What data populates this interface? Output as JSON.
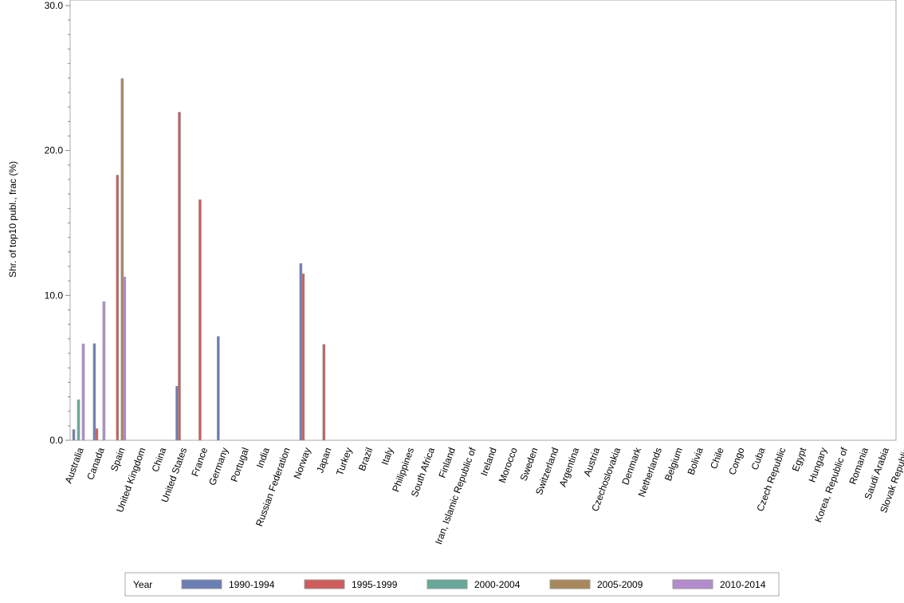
{
  "chart_data": {
    "type": "bar",
    "ylabel": "Shr. of top10 publ., frac (%)",
    "ylim": [
      0,
      30
    ],
    "yticks": [
      "0.0",
      "10.0",
      "20.0",
      "30.0"
    ],
    "grid": false,
    "legend_title": "Year",
    "legend_placement": "bottom",
    "categories": [
      "Australia",
      "Canada",
      "Spain",
      "United Kingdom",
      "China",
      "United States",
      "France",
      "Germany",
      "Portugal",
      "India",
      "Russian Federation",
      "Norway",
      "Japan",
      "Turkey",
      "Brazil",
      "Italy",
      "Philippines",
      "South Africa",
      "Finland",
      "Iran, Islamic Republic of",
      "Ireland",
      "Morocco",
      "Sweden",
      "Switzerland",
      "Argentina",
      "Austria",
      "Czechoslovakia",
      "Denmark",
      "Netherlands",
      "Belgium",
      "Bolivia",
      "Chile",
      "Congo",
      "Cuba",
      "Czech Republic",
      "Egypt",
      "Hungary",
      "Korea, Republic of",
      "Romania",
      "Saudi Arabia",
      "Slovak Republic"
    ],
    "series": [
      {
        "name": "1990-1994",
        "color": "#6b7db5",
        "values": {
          "Australia": 0.74,
          "Canada": 6.67,
          "United States": 3.73,
          "Germany": 7.17,
          "Norway": 12.2
        }
      },
      {
        "name": "1995-1999",
        "color": "#d05b5b",
        "values": {
          "Canada": 0.8,
          "Spain": 18.3,
          "United States": 22.64,
          "France": 16.6,
          "Norway": 11.49,
          "Japan": 6.62
        }
      },
      {
        "name": "2000-2004",
        "color": "#66a89a",
        "values": {
          "Australia": 2.8
        }
      },
      {
        "name": "2005-2009",
        "color": "#a8885a",
        "values": {
          "Spain": 24.96
        }
      },
      {
        "name": "2010-2014",
        "color": "#b48bcf",
        "values": {
          "Australia": 6.65,
          "Canada": 9.56,
          "Spain": 11.27
        }
      }
    ]
  }
}
